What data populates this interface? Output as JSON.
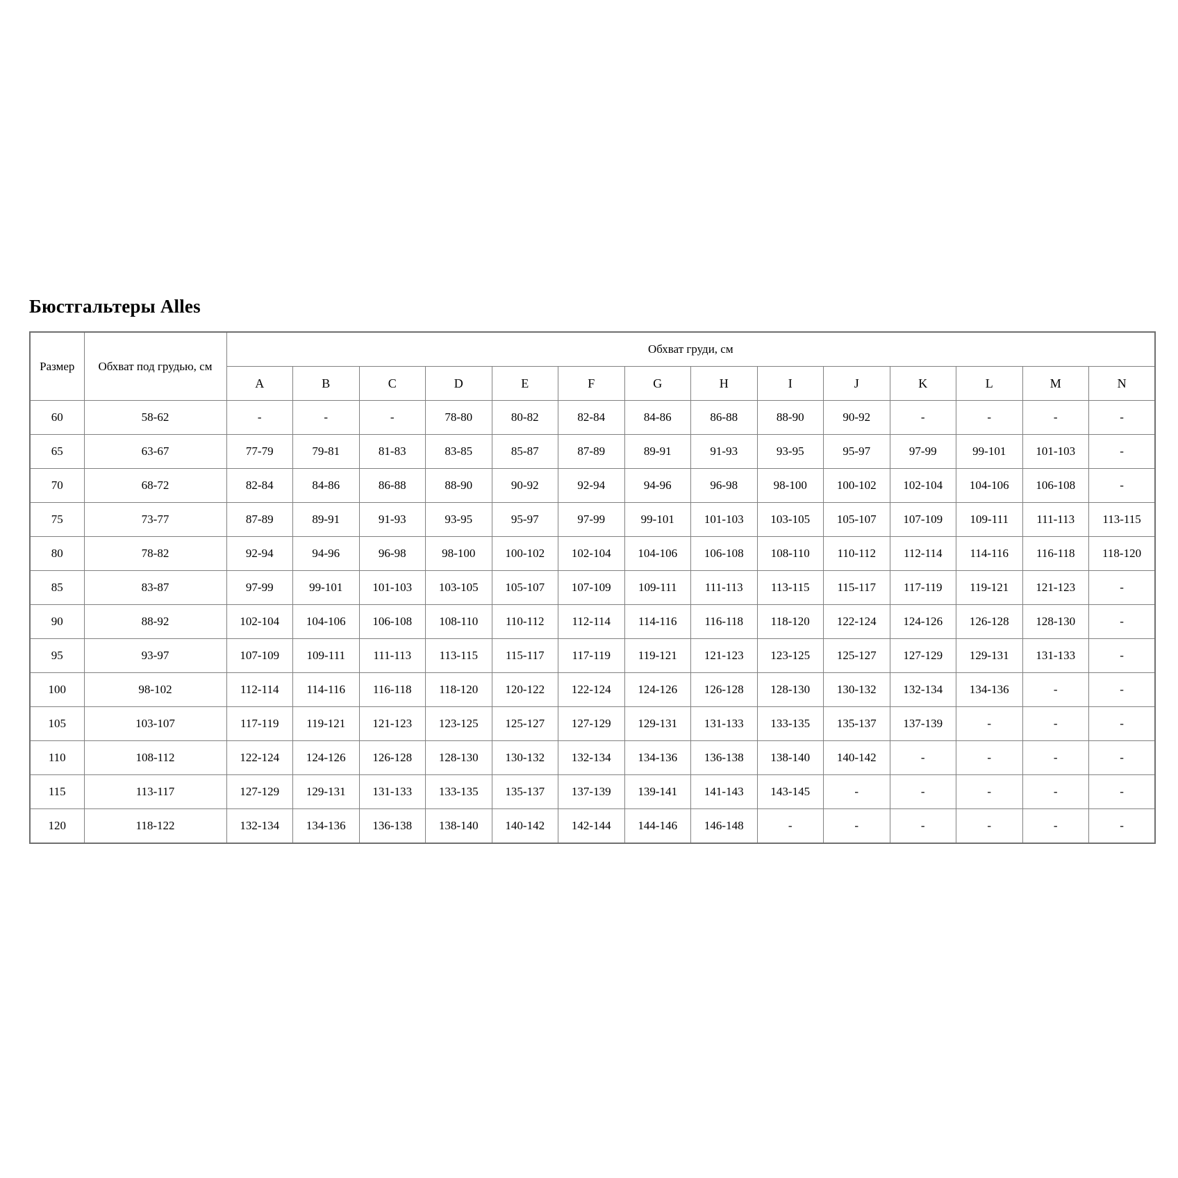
{
  "page": {
    "title": "Бюстгальтеры Alles"
  },
  "colors": {
    "background": "#ffffff",
    "text": "#000000",
    "border": "#808080"
  },
  "table": {
    "header": {
      "size_label": "Размер",
      "underbust_label": "Обхват под грудью, см",
      "bust_group_label": "Обхват груди, см",
      "cup_labels": [
        "A",
        "B",
        "C",
        "D",
        "E",
        "F",
        "G",
        "H",
        "I",
        "J",
        "K",
        "L",
        "M",
        "N"
      ]
    },
    "rows": [
      {
        "size": "60",
        "underbust": "58-62",
        "cups": [
          "-",
          "-",
          "-",
          "78-80",
          "80-82",
          "82-84",
          "84-86",
          "86-88",
          "88-90",
          "90-92",
          "-",
          "-",
          "-",
          "-"
        ]
      },
      {
        "size": "65",
        "underbust": "63-67",
        "cups": [
          "77-79",
          "79-81",
          "81-83",
          "83-85",
          "85-87",
          "87-89",
          "89-91",
          "91-93",
          "93-95",
          "95-97",
          "97-99",
          "99-101",
          "101-103",
          "-"
        ]
      },
      {
        "size": "70",
        "underbust": "68-72",
        "cups": [
          "82-84",
          "84-86",
          "86-88",
          "88-90",
          "90-92",
          "92-94",
          "94-96",
          "96-98",
          "98-100",
          "100-102",
          "102-104",
          "104-106",
          "106-108",
          "-"
        ]
      },
      {
        "size": "75",
        "underbust": "73-77",
        "cups": [
          "87-89",
          "89-91",
          "91-93",
          "93-95",
          "95-97",
          "97-99",
          "99-101",
          "101-103",
          "103-105",
          "105-107",
          "107-109",
          "109-111",
          "111-113",
          "113-115"
        ]
      },
      {
        "size": "80",
        "underbust": "78-82",
        "cups": [
          "92-94",
          "94-96",
          "96-98",
          "98-100",
          "100-102",
          "102-104",
          "104-106",
          "106-108",
          "108-110",
          "110-112",
          "112-114",
          "114-116",
          "116-118",
          "118-120"
        ]
      },
      {
        "size": "85",
        "underbust": "83-87",
        "cups": [
          "97-99",
          "99-101",
          "101-103",
          "103-105",
          "105-107",
          "107-109",
          "109-111",
          "111-113",
          "113-115",
          "115-117",
          "117-119",
          "119-121",
          "121-123",
          "-"
        ]
      },
      {
        "size": "90",
        "underbust": "88-92",
        "cups": [
          "102-104",
          "104-106",
          "106-108",
          "108-110",
          "110-112",
          "112-114",
          "114-116",
          "116-118",
          "118-120",
          "122-124",
          "124-126",
          "126-128",
          "128-130",
          "-"
        ]
      },
      {
        "size": "95",
        "underbust": "93-97",
        "cups": [
          "107-109",
          "109-111",
          "111-113",
          "113-115",
          "115-117",
          "117-119",
          "119-121",
          "121-123",
          "123-125",
          "125-127",
          "127-129",
          "129-131",
          "131-133",
          "-"
        ]
      },
      {
        "size": "100",
        "underbust": "98-102",
        "cups": [
          "112-114",
          "114-116",
          "116-118",
          "118-120",
          "120-122",
          "122-124",
          "124-126",
          "126-128",
          "128-130",
          "130-132",
          "132-134",
          "134-136",
          "-",
          "-"
        ]
      },
      {
        "size": "105",
        "underbust": "103-107",
        "cups": [
          "117-119",
          "119-121",
          "121-123",
          "123-125",
          "125-127",
          "127-129",
          "129-131",
          "131-133",
          "133-135",
          "135-137",
          "137-139",
          "-",
          "-",
          "-"
        ]
      },
      {
        "size": "110",
        "underbust": "108-112",
        "cups": [
          "122-124",
          "124-126",
          "126-128",
          "128-130",
          "130-132",
          "132-134",
          "134-136",
          "136-138",
          "138-140",
          "140-142",
          "-",
          "-",
          "-",
          "-"
        ]
      },
      {
        "size": "115",
        "underbust": "113-117",
        "cups": [
          "127-129",
          "129-131",
          "131-133",
          "133-135",
          "135-137",
          "137-139",
          "139-141",
          "141-143",
          "143-145",
          "-",
          "-",
          "-",
          "-",
          "-"
        ]
      },
      {
        "size": "120",
        "underbust": "118-122",
        "cups": [
          "132-134",
          "134-136",
          "136-138",
          "138-140",
          "140-142",
          "142-144",
          "144-146",
          "146-148",
          "-",
          "-",
          "-",
          "-",
          "-",
          "-"
        ]
      }
    ]
  }
}
